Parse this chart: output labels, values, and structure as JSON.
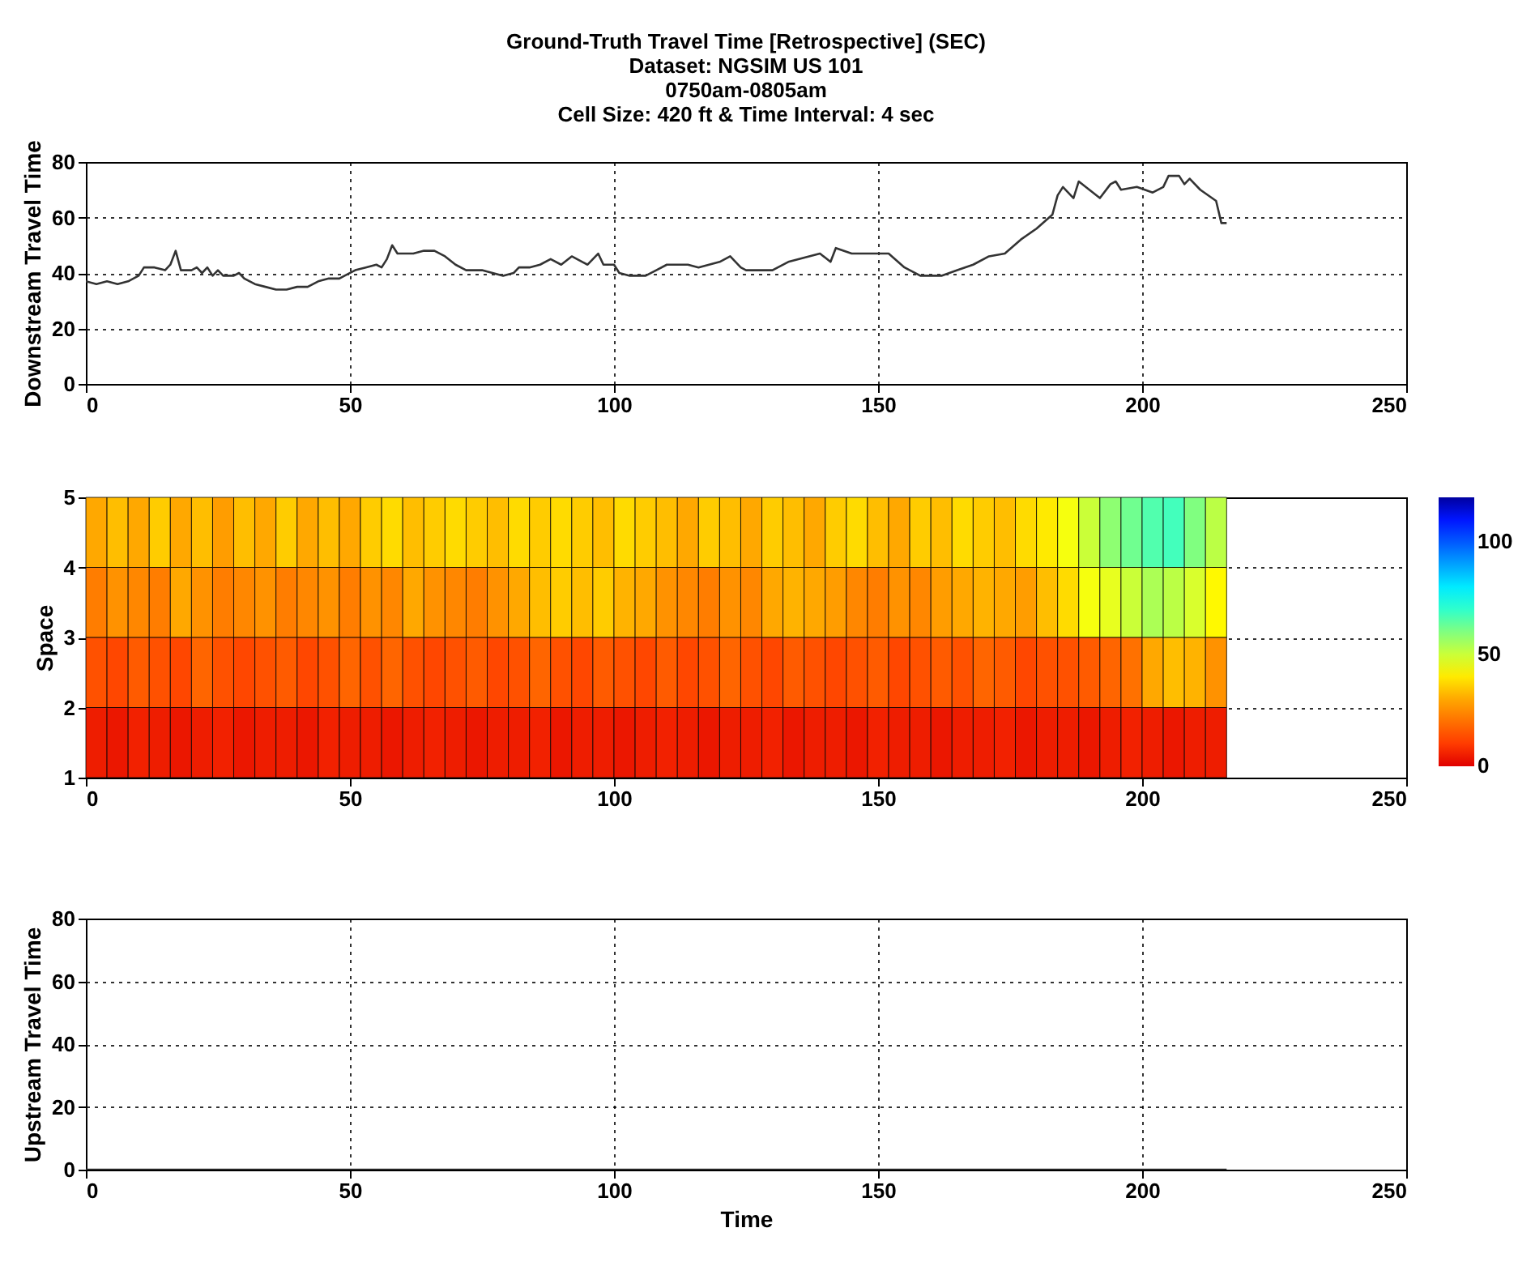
{
  "chart_data": [
    {
      "type": "line",
      "title": "Ground-Truth Travel Time [Retrospective] (SEC)",
      "subtitle": "Dataset: NGSIM US 101\n0750am-0805am\nCell Size: 420 ft & Time Interval: 4 sec",
      "ylabel": "Downstream Travel Time",
      "xlim": [
        0,
        250
      ],
      "xticks": [
        0,
        50,
        100,
        150,
        200,
        250
      ],
      "ylim": [
        0,
        80
      ],
      "yticks": [
        0,
        20,
        40,
        60,
        80
      ],
      "grid": true,
      "series": [
        {
          "color": "#333333",
          "x": [
            0,
            2,
            4,
            6,
            8,
            10,
            11,
            13,
            15,
            16,
            17,
            18,
            20,
            21,
            22,
            23,
            24,
            25,
            26,
            28,
            29,
            30,
            32,
            34,
            36,
            38,
            40,
            42,
            44,
            46,
            48,
            49,
            51,
            53,
            55,
            56,
            57,
            58,
            59,
            62,
            64,
            66,
            68,
            70,
            72,
            75,
            77,
            79,
            81,
            82,
            84,
            86,
            88,
            90,
            92,
            94,
            95,
            97,
            98,
            100,
            101,
            103,
            106,
            108,
            110,
            114,
            116,
            118,
            120,
            122,
            124,
            125,
            130,
            133,
            139,
            141,
            142,
            145,
            150,
            152,
            155,
            158,
            162,
            165,
            168,
            171,
            174,
            177,
            180,
            183,
            184,
            185,
            187,
            188,
            190,
            192,
            194,
            195,
            196,
            199,
            202,
            204,
            205,
            207,
            208,
            209,
            211,
            214,
            215,
            216
          ],
          "values": [
            37,
            36,
            37,
            36,
            37,
            39,
            42,
            42,
            41,
            43,
            48,
            41,
            41,
            42,
            40,
            42,
            39,
            41,
            39,
            39,
            40,
            38,
            36,
            35,
            34,
            34,
            35,
            35,
            37,
            38,
            38,
            39,
            41,
            42,
            43,
            42,
            45,
            50,
            47,
            47,
            48,
            48,
            46,
            43,
            41,
            41,
            40,
            39,
            40,
            42,
            42,
            43,
            45,
            43,
            46,
            44,
            43,
            47,
            43,
            43,
            40,
            39,
            39,
            41,
            43,
            43,
            42,
            43,
            44,
            46,
            42,
            41,
            41,
            44,
            47,
            44,
            49,
            47,
            47,
            47,
            42,
            39,
            39,
            41,
            43,
            46,
            47,
            52,
            56,
            61,
            68,
            71,
            67,
            73,
            70,
            67,
            72,
            73,
            70,
            71,
            69,
            71,
            75,
            75,
            72,
            74,
            70,
            66,
            58,
            58
          ]
        }
      ]
    },
    {
      "type": "heatmap",
      "ylabel": "Space",
      "xlim": [
        0,
        250
      ],
      "xticks": [
        0,
        50,
        100,
        150,
        200,
        250
      ],
      "ylim": [
        1,
        5
      ],
      "yticks": [
        1,
        2,
        3,
        4,
        5
      ],
      "grid": true,
      "clim": [
        0,
        120
      ],
      "cticks": [
        0,
        50,
        100
      ],
      "x": [
        0,
        4,
        8,
        12,
        16,
        20,
        24,
        28,
        32,
        36,
        40,
        44,
        48,
        52,
        56,
        60,
        64,
        68,
        72,
        76,
        80,
        84,
        88,
        92,
        96,
        100,
        104,
        108,
        112,
        116,
        120,
        124,
        128,
        132,
        136,
        140,
        144,
        148,
        152,
        156,
        160,
        164,
        168,
        172,
        176,
        180,
        184,
        188,
        192,
        196,
        200,
        204,
        208,
        212
      ],
      "cells": [
        [
          30,
          34,
          30,
          36,
          30,
          34,
          28,
          34,
          30,
          36,
          30,
          34,
          30,
          36,
          38,
          34,
          36,
          38,
          36,
          34,
          38,
          36,
          38,
          36,
          34,
          38,
          36,
          34,
          30,
          36,
          34,
          30,
          36,
          34,
          30,
          36,
          38,
          34,
          30,
          36,
          34,
          38,
          36,
          34,
          38,
          40,
          44,
          50,
          58,
          62,
          66,
          68,
          60,
          52
        ],
        [
          22,
          26,
          24,
          22,
          30,
          26,
          22,
          24,
          26,
          22,
          24,
          26,
          22,
          26,
          24,
          30,
          26,
          24,
          22,
          26,
          30,
          34,
          36,
          34,
          36,
          32,
          30,
          26,
          24,
          22,
          26,
          24,
          30,
          32,
          30,
          28,
          24,
          22,
          26,
          24,
          28,
          30,
          32,
          30,
          28,
          34,
          38,
          44,
          46,
          50,
          54,
          52,
          48,
          42
        ],
        [
          14,
          12,
          16,
          14,
          12,
          18,
          14,
          12,
          14,
          16,
          12,
          14,
          18,
          14,
          18,
          14,
          12,
          14,
          16,
          12,
          14,
          18,
          14,
          12,
          16,
          14,
          12,
          16,
          12,
          14,
          18,
          14,
          12,
          16,
          14,
          12,
          14,
          16,
          12,
          14,
          16,
          14,
          18,
          16,
          12,
          14,
          14,
          16,
          18,
          20,
          30,
          34,
          32,
          26
        ],
        [
          4,
          3,
          5,
          4,
          3,
          4,
          5,
          3,
          4,
          4,
          3,
          5,
          4,
          4,
          3,
          4,
          5,
          4,
          3,
          4,
          4,
          5,
          3,
          4,
          4,
          3,
          4,
          5,
          4,
          3,
          4,
          4,
          5,
          3,
          4,
          4,
          3,
          5,
          4,
          4,
          3,
          4,
          4,
          5,
          3,
          4,
          4,
          3,
          4,
          5,
          4,
          3,
          4,
          4
        ]
      ]
    },
    {
      "type": "line",
      "ylabel": "Upstream Travel Time",
      "xlabel": "Time",
      "xlim": [
        0,
        250
      ],
      "xticks": [
        0,
        50,
        100,
        150,
        200,
        250
      ],
      "ylim": [
        0,
        80
      ],
      "yticks": [
        0,
        20,
        40,
        60,
        80
      ],
      "grid": true,
      "series": [
        {
          "color": "#333333",
          "x": [
            0,
            50,
            100,
            150,
            200,
            216
          ],
          "values": [
            0,
            0,
            0,
            0,
            0,
            0
          ]
        }
      ]
    }
  ]
}
